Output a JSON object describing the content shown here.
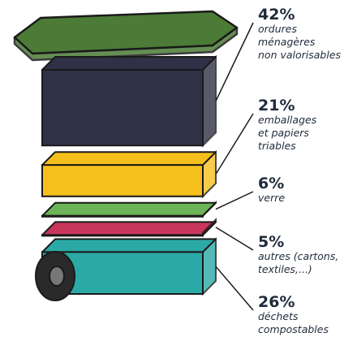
{
  "chart_data": {
    "type": "bin",
    "categories": [
      "ordures\nménagères\nnon valorisables",
      "emballages\net papiers\ntriables",
      "verre",
      "autres (cartons,\ntextiles,...)",
      "déchets\ncompostables"
    ],
    "values": [
      42,
      21,
      6,
      5,
      26
    ],
    "value_labels": [
      "42%",
      "21%",
      "6%",
      "5%",
      "26%"
    ],
    "colors": [
      "#2f3146",
      "#f6c01c",
      "#6cb457",
      "#c8375b",
      "#2ba9a6"
    ],
    "lid_color": "#4b7b36"
  }
}
